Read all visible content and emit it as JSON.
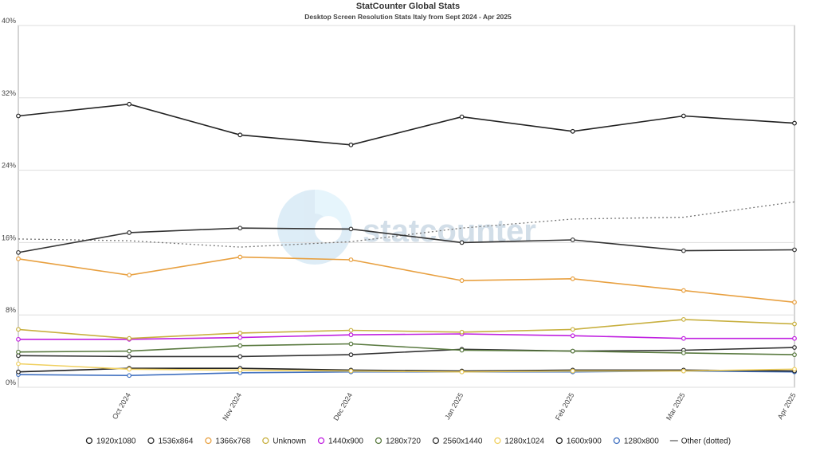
{
  "chart_data": {
    "type": "line",
    "title": "StatCounter Global Stats",
    "subtitle": "Desktop Screen Resolution Stats Italy from Sept 2024 - Apr 2025",
    "watermark": "statcounter",
    "categories": [
      null,
      "Oct 2024",
      "Nov 2024",
      "Dec 2024",
      "Jan 2025",
      "Feb 2025",
      "Mar 2025",
      "Apr 2025"
    ],
    "ylim": [
      0,
      40
    ],
    "yticks": [
      {
        "value": 0,
        "label": "0%"
      },
      {
        "value": 8,
        "label": "8%"
      },
      {
        "value": 16,
        "label": "16%"
      },
      {
        "value": 24,
        "label": "24%"
      },
      {
        "value": 32,
        "label": "32%"
      },
      {
        "value": 40,
        "label": "40%"
      }
    ],
    "grid": true,
    "legend": "bottom",
    "series": [
      {
        "name": "1920x1080",
        "color": "#222222",
        "values": [
          30.0,
          31.3,
          27.9,
          26.8,
          29.9,
          28.3,
          30.0,
          29.2
        ]
      },
      {
        "name": "1536x864",
        "color": "#333333",
        "values": [
          14.9,
          17.1,
          17.6,
          17.5,
          16.0,
          16.3,
          15.1,
          15.2
        ]
      },
      {
        "name": "1366x768",
        "color": "#e8a040",
        "values": [
          14.2,
          12.4,
          14.4,
          14.1,
          11.8,
          12.0,
          10.7,
          9.4
        ]
      },
      {
        "name": "Unknown",
        "color": "#c8b040",
        "values": [
          6.4,
          5.4,
          6.0,
          6.3,
          6.1,
          6.4,
          7.5,
          7.0
        ]
      },
      {
        "name": "1440x900",
        "color": "#c020e0",
        "values": [
          5.3,
          5.3,
          5.5,
          5.8,
          5.9,
          5.7,
          5.4,
          5.4
        ]
      },
      {
        "name": "1280x720",
        "color": "#5a7a40",
        "values": [
          3.9,
          4.0,
          4.6,
          4.8,
          4.1,
          4.0,
          3.8,
          3.6
        ]
      },
      {
        "name": "2560x1440",
        "color": "#333333",
        "values": [
          3.5,
          3.4,
          3.4,
          3.6,
          4.2,
          4.0,
          4.1,
          4.4
        ]
      },
      {
        "name": "1280x1024",
        "color": "#f0d060",
        "values": [
          2.6,
          2.0,
          1.9,
          1.8,
          1.7,
          1.8,
          1.8,
          2.0
        ]
      },
      {
        "name": "1600x900",
        "color": "#222222",
        "values": [
          1.7,
          2.1,
          2.1,
          1.9,
          1.8,
          1.9,
          1.9,
          1.8
        ]
      },
      {
        "name": "1280x800",
        "color": "#4070c0",
        "values": [
          1.4,
          1.3,
          1.6,
          1.7,
          1.7,
          1.7,
          1.8,
          1.7
        ]
      },
      {
        "name": "Other (dotted)",
        "color": "#777777",
        "style": "dotted",
        "values": [
          16.4,
          16.2,
          15.5,
          16.1,
          17.6,
          18.6,
          18.8,
          20.5
        ]
      }
    ]
  }
}
